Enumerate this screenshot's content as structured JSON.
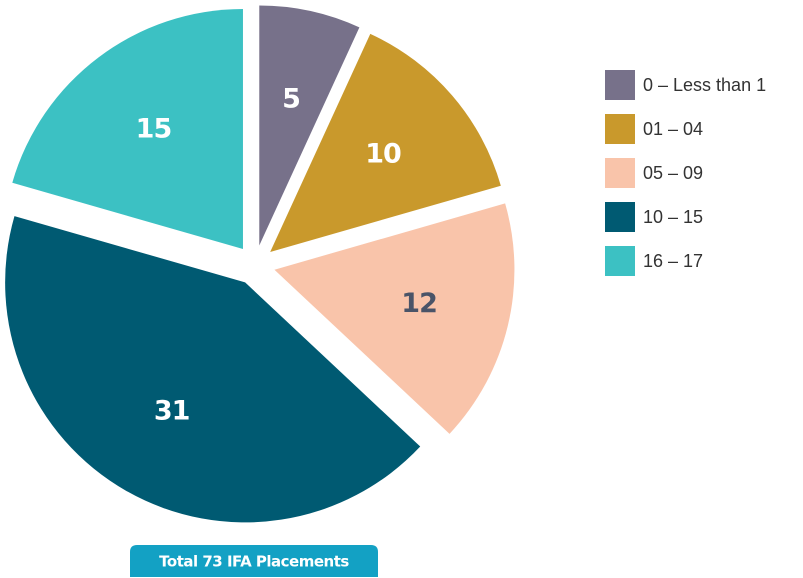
{
  "chart_data": {
    "type": "pie",
    "categories": [
      "0 – Less than 1",
      "01 – 04",
      "05 – 09",
      "10 – 15",
      "16 – 17"
    ],
    "values": [
      5,
      10,
      12,
      31,
      15
    ],
    "colors": [
      "#77718a",
      "#c9992c",
      "#f9c4aa",
      "#005a72",
      "#3cc1c3"
    ],
    "label_colors": [
      "#ffffff",
      "#ffffff",
      "#4a5468",
      "#ffffff",
      "#ffffff"
    ],
    "annotation": "Total 73 IFA Placements",
    "legend": "right"
  }
}
